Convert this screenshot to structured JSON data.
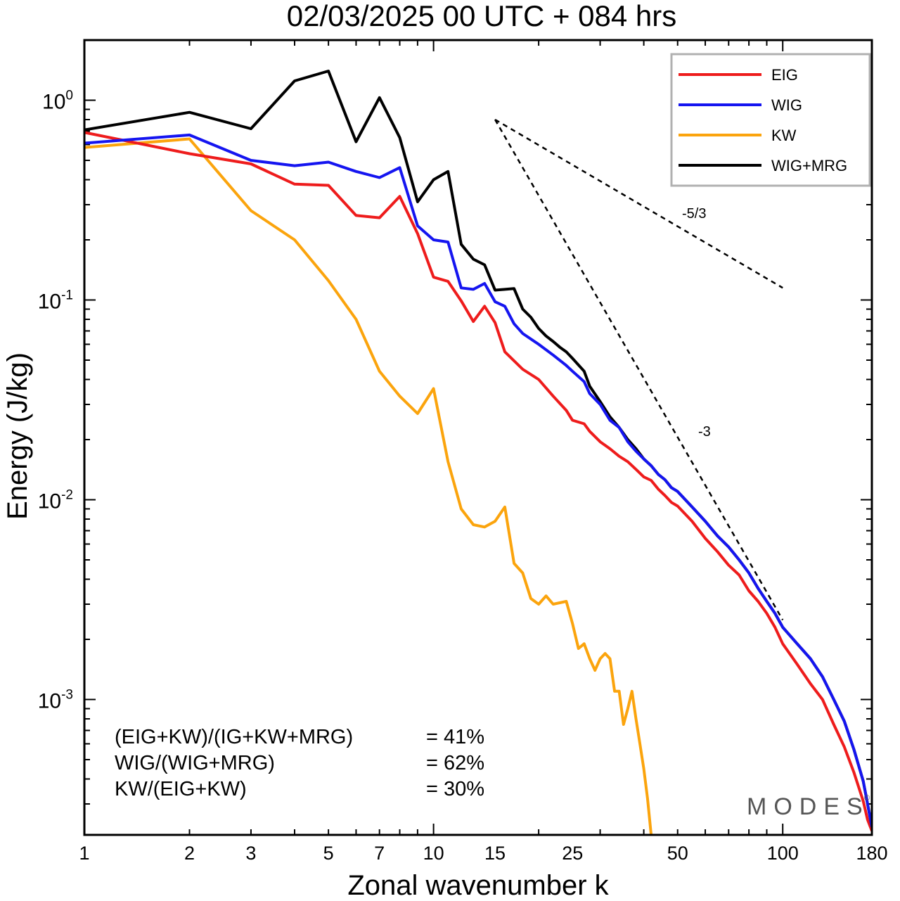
{
  "chart_data": {
    "type": "line",
    "title": "02/03/2025  00 UTC  + 084 hrs",
    "xlabel": "Zonal wavenumber k",
    "ylabel": "Energy (J/kg)",
    "x_scale": "log",
    "y_scale": "log",
    "xlim": [
      1,
      180
    ],
    "ylim": [
      0.00021,
      2.0
    ],
    "x_ticks": [
      1,
      2,
      3,
      5,
      7,
      10,
      15,
      25,
      50,
      100,
      180
    ],
    "x_tick_labels": [
      "1",
      "2",
      "3",
      "5",
      "7",
      "10",
      "15",
      "25",
      "50",
      "100",
      "180"
    ],
    "y_ticks": [
      1,
      0.1,
      0.01,
      0.001
    ],
    "y_tick_labels": [
      {
        "base": "10",
        "exp": "0"
      },
      {
        "base": "10",
        "exp": "-1"
      },
      {
        "base": "10",
        "exp": "-2"
      },
      {
        "base": "10",
        "exp": "-3"
      }
    ],
    "legend_position": "top-right",
    "series": [
      {
        "name": "EIG",
        "color": "#ee1c1c",
        "points": [
          [
            1,
            0.69
          ],
          [
            2,
            0.54
          ],
          [
            3,
            0.48
          ],
          [
            4,
            0.38
          ],
          [
            5,
            0.375
          ],
          [
            6,
            0.265
          ],
          [
            7,
            0.258
          ],
          [
            8,
            0.33
          ],
          [
            9,
            0.215
          ],
          [
            10,
            0.13
          ],
          [
            11,
            0.124
          ],
          [
            12,
            0.099
          ],
          [
            13,
            0.078
          ],
          [
            14,
            0.093
          ],
          [
            15,
            0.077
          ],
          [
            16,
            0.055
          ],
          [
            18,
            0.045
          ],
          [
            20,
            0.04
          ],
          [
            22,
            0.033
          ],
          [
            24,
            0.028
          ],
          [
            25,
            0.025
          ],
          [
            27,
            0.024
          ],
          [
            28,
            0.022
          ],
          [
            30,
            0.0195
          ],
          [
            32,
            0.018
          ],
          [
            34,
            0.0165
          ],
          [
            36,
            0.0155
          ],
          [
            38,
            0.0142
          ],
          [
            40,
            0.013
          ],
          [
            42,
            0.0125
          ],
          [
            44,
            0.0113
          ],
          [
            46,
            0.0105
          ],
          [
            48,
            0.0097
          ],
          [
            50,
            0.0093
          ],
          [
            55,
            0.0078
          ],
          [
            60,
            0.0064
          ],
          [
            65,
            0.0055
          ],
          [
            70,
            0.0047
          ],
          [
            75,
            0.0042
          ],
          [
            80,
            0.0035
          ],
          [
            85,
            0.0031
          ],
          [
            90,
            0.0027
          ],
          [
            95,
            0.0023
          ],
          [
            100,
            0.0019
          ],
          [
            110,
            0.0015
          ],
          [
            120,
            0.0012
          ],
          [
            130,
            0.001
          ],
          [
            140,
            0.00075
          ],
          [
            150,
            0.00058
          ],
          [
            160,
            0.00043
          ],
          [
            170,
            0.00031
          ],
          [
            175,
            0.00025
          ],
          [
            180,
            0.00022
          ]
        ]
      },
      {
        "name": "WIG",
        "color": "#1515f0",
        "points": [
          [
            1,
            0.61
          ],
          [
            2,
            0.67
          ],
          [
            3,
            0.5
          ],
          [
            4,
            0.47
          ],
          [
            5,
            0.49
          ],
          [
            6,
            0.44
          ],
          [
            7,
            0.41
          ],
          [
            8,
            0.46
          ],
          [
            9,
            0.235
          ],
          [
            10,
            0.2
          ],
          [
            11,
            0.195
          ],
          [
            12,
            0.115
          ],
          [
            13,
            0.113
          ],
          [
            14,
            0.121
          ],
          [
            15,
            0.098
          ],
          [
            16,
            0.093
          ],
          [
            17,
            0.076
          ],
          [
            18,
            0.068
          ],
          [
            20,
            0.06
          ],
          [
            22,
            0.053
          ],
          [
            24,
            0.047
          ],
          [
            25,
            0.044
          ],
          [
            27,
            0.039
          ],
          [
            28,
            0.034
          ],
          [
            30,
            0.03
          ],
          [
            32,
            0.025
          ],
          [
            34,
            0.023
          ],
          [
            36,
            0.0195
          ],
          [
            38,
            0.0175
          ],
          [
            40,
            0.016
          ],
          [
            42,
            0.0148
          ],
          [
            44,
            0.0134
          ],
          [
            46,
            0.0126
          ],
          [
            48,
            0.0115
          ],
          [
            50,
            0.011
          ],
          [
            55,
            0.0092
          ],
          [
            60,
            0.0078
          ],
          [
            65,
            0.0066
          ],
          [
            70,
            0.0058
          ],
          [
            75,
            0.005
          ],
          [
            80,
            0.0043
          ],
          [
            85,
            0.0036
          ],
          [
            90,
            0.0031
          ],
          [
            95,
            0.0027
          ],
          [
            100,
            0.0023
          ],
          [
            110,
            0.0019
          ],
          [
            120,
            0.0016
          ],
          [
            130,
            0.0013
          ],
          [
            140,
            0.001
          ],
          [
            150,
            0.00078
          ],
          [
            160,
            0.00056
          ],
          [
            170,
            0.00039
          ],
          [
            175,
            0.0003
          ],
          [
            180,
            0.00023
          ]
        ]
      },
      {
        "name": "KW",
        "color": "#fba40d",
        "points": [
          [
            1,
            0.58
          ],
          [
            2,
            0.64
          ],
          [
            3,
            0.28
          ],
          [
            4,
            0.2
          ],
          [
            5,
            0.125
          ],
          [
            6,
            0.08
          ],
          [
            7,
            0.044
          ],
          [
            8,
            0.033
          ],
          [
            9,
            0.027
          ],
          [
            10,
            0.036
          ],
          [
            11,
            0.0155
          ],
          [
            12,
            0.009
          ],
          [
            13,
            0.0075
          ],
          [
            14,
            0.0073
          ],
          [
            15,
            0.0078
          ],
          [
            16,
            0.0092
          ],
          [
            17,
            0.0048
          ],
          [
            18,
            0.0043
          ],
          [
            19,
            0.0032
          ],
          [
            20,
            0.003
          ],
          [
            21,
            0.0033
          ],
          [
            22,
            0.003
          ],
          [
            24,
            0.0031
          ],
          [
            25,
            0.0024
          ],
          [
            26,
            0.0018
          ],
          [
            27,
            0.0019
          ],
          [
            28,
            0.0016
          ],
          [
            29,
            0.0014
          ],
          [
            30,
            0.0016
          ],
          [
            31,
            0.0017
          ],
          [
            32,
            0.0016
          ],
          [
            33,
            0.0011
          ],
          [
            34,
            0.0011
          ],
          [
            35,
            0.00075
          ],
          [
            36,
            0.0009
          ],
          [
            37,
            0.0011
          ],
          [
            38,
            0.0008
          ],
          [
            39,
            0.0006
          ],
          [
            40,
            0.00045
          ],
          [
            41,
            0.00032
          ],
          [
            42,
            0.00021
          ]
        ]
      },
      {
        "name": "WIG+MRG",
        "color": "#000000",
        "points": [
          [
            1,
            0.71
          ],
          [
            2,
            0.87
          ],
          [
            3,
            0.72
          ],
          [
            4,
            1.25
          ],
          [
            5,
            1.4
          ],
          [
            6,
            0.62
          ],
          [
            7,
            1.03
          ],
          [
            8,
            0.65
          ],
          [
            9,
            0.31
          ],
          [
            10,
            0.4
          ],
          [
            11,
            0.44
          ],
          [
            12,
            0.19
          ],
          [
            13,
            0.16
          ],
          [
            14,
            0.15
          ],
          [
            15,
            0.112
          ],
          [
            16,
            0.113
          ],
          [
            17,
            0.114
          ],
          [
            18,
            0.09
          ],
          [
            19,
            0.082
          ],
          [
            20,
            0.072
          ],
          [
            21,
            0.066
          ],
          [
            22,
            0.062
          ],
          [
            23,
            0.058
          ],
          [
            24,
            0.055
          ],
          [
            25,
            0.051
          ],
          [
            27,
            0.044
          ],
          [
            28,
            0.037
          ],
          [
            30,
            0.031
          ],
          [
            32,
            0.026
          ],
          [
            34,
            0.023
          ],
          [
            36,
            0.02
          ],
          [
            38,
            0.018
          ],
          [
            40,
            0.016
          ],
          [
            42,
            0.0148
          ],
          [
            44,
            0.0134
          ],
          [
            46,
            0.0126
          ],
          [
            48,
            0.0115
          ],
          [
            50,
            0.011
          ],
          [
            55,
            0.0092
          ],
          [
            60,
            0.0078
          ],
          [
            65,
            0.0066
          ],
          [
            70,
            0.0058
          ],
          [
            75,
            0.005
          ],
          [
            80,
            0.0043
          ],
          [
            85,
            0.0036
          ],
          [
            90,
            0.0031
          ],
          [
            95,
            0.0027
          ],
          [
            100,
            0.0023
          ],
          [
            110,
            0.0019
          ],
          [
            120,
            0.0016
          ],
          [
            130,
            0.0013
          ],
          [
            140,
            0.001
          ],
          [
            150,
            0.00078
          ],
          [
            160,
            0.00056
          ],
          [
            170,
            0.00039
          ],
          [
            175,
            0.0003
          ],
          [
            180,
            0.00023
          ]
        ]
      }
    ],
    "reference_slopes": [
      {
        "label": "-5/3",
        "start": [
          15,
          0.8
        ],
        "end": [
          100,
          0.115
        ]
      },
      {
        "label": "-3",
        "start": [
          15,
          0.8
        ],
        "end": [
          100,
          0.0025
        ]
      }
    ],
    "annotations": [
      {
        "label": "(EIG+KW)/(IG+KW+MRG)",
        "value": "= 41%"
      },
      {
        "label": "WIG/(WIG+MRG)",
        "value": "= 62%"
      },
      {
        "label": "KW/(EIG+KW)",
        "value": "= 30%"
      }
    ],
    "watermark": "MODES",
    "watermark_mark": "©"
  }
}
